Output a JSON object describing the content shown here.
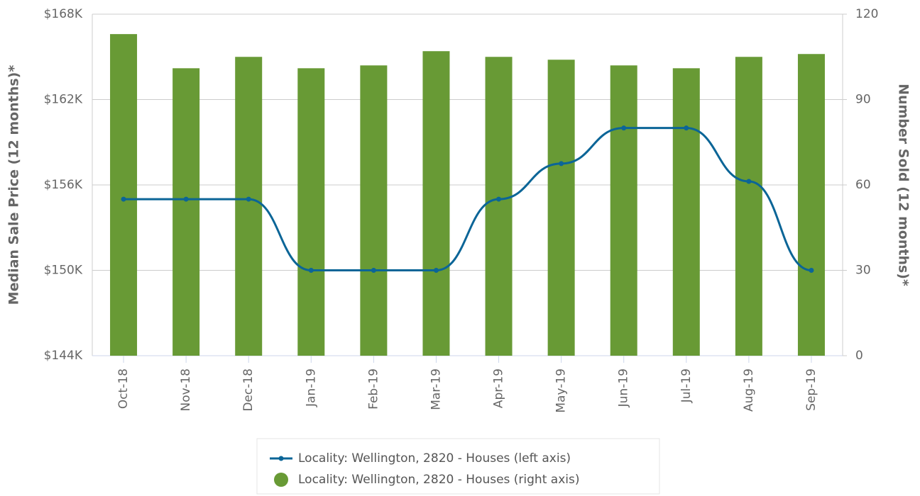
{
  "chart_data": {
    "type": "bar-line",
    "categories": [
      "Oct-18",
      "Nov-18",
      "Dec-18",
      "Jan-19",
      "Feb-19",
      "Mar-19",
      "Apr-19",
      "May-19",
      "Jun-19",
      "Jul-19",
      "Aug-19",
      "Sep-19"
    ],
    "y_label": "Median Sale Price (12 months)*",
    "y2_label": "Number Sold (12 months)*",
    "ylim": [
      144000,
      168000
    ],
    "yticks": [
      {
        "value": 144000,
        "label": "$144K"
      },
      {
        "value": 150000,
        "label": "$150K"
      },
      {
        "value": 156000,
        "label": "$156K"
      },
      {
        "value": 162000,
        "label": "$162K"
      },
      {
        "value": 168000,
        "label": "$168K"
      }
    ],
    "y2lim": [
      0,
      120
    ],
    "y2ticks": [
      0,
      30,
      60,
      90,
      120
    ],
    "grid": true,
    "legend": "bottom",
    "series": [
      {
        "name": "Locality: Wellington, 2820 - Houses (left axis)",
        "type": "line",
        "color": "#0b6597",
        "values": [
          155000,
          155000,
          155000,
          150000,
          150000,
          150000,
          155000,
          157500,
          160000,
          160000,
          156250,
          150000
        ]
      },
      {
        "name": "Locality: Wellington, 2820 - Houses (right axis)",
        "type": "bar",
        "axis": "y2",
        "color": "#689a35",
        "values": [
          113,
          101,
          105,
          101,
          102,
          107,
          105,
          104,
          102,
          101,
          105,
          106
        ]
      }
    ]
  }
}
